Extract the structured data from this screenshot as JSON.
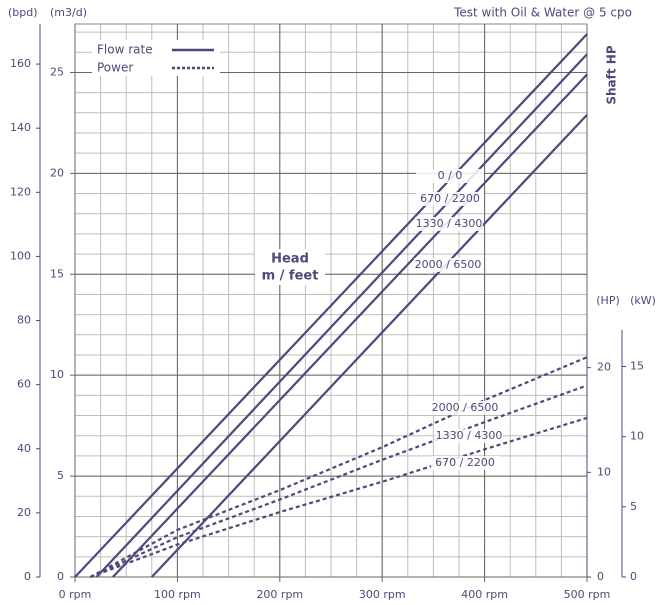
{
  "chart_data": {
    "type": "line",
    "title": "Test with Oil & Water @ 5 cpo",
    "y_label": "(m3/d)",
    "y3_label": "(bpd)",
    "y2_title": "Shaft HP",
    "y2_label": "(HP)",
    "y4_label": "(kW)",
    "annotation": [
      "Head",
      "m / feet"
    ],
    "legend": [
      {
        "name": "Flow rate",
        "style": "solid"
      },
      {
        "name": "Power",
        "style": "dotted"
      }
    ],
    "color": "#4b4a7a",
    "grid": true,
    "xlim": [
      0,
      500
    ],
    "xticks": [
      {
        "value": 0,
        "label": "0 rpm"
      },
      {
        "value": 100,
        "label": "100 rpm"
      },
      {
        "value": 200,
        "label": "200 rpm"
      },
      {
        "value": 300,
        "label": "300 rpm"
      },
      {
        "value": 400,
        "label": "400 rpm"
      },
      {
        "value": 500,
        "label": "500 rpm"
      }
    ],
    "xgrid": [
      0,
      25,
      50,
      75,
      100,
      125,
      150,
      175,
      200,
      225,
      250,
      275,
      300,
      325,
      350,
      375,
      400,
      425,
      450,
      475,
      500
    ],
    "ylim": [
      0,
      27.4
    ],
    "yticks": [
      0,
      5,
      10,
      15,
      20,
      25
    ],
    "ygrid": [
      0,
      1,
      2,
      3,
      4,
      5,
      6,
      7,
      8,
      9,
      10,
      11,
      12,
      13,
      14,
      15,
      16,
      17,
      18,
      19,
      20,
      21,
      22,
      23,
      24,
      25,
      26,
      27
    ],
    "y3lim": [
      0,
      172.5
    ],
    "y3ticks": [
      0,
      20,
      40,
      60,
      80,
      100,
      120,
      140,
      160
    ],
    "y2lim": [
      0,
      23.6
    ],
    "y2ticks": [
      0,
      10,
      20
    ],
    "y4lim": [
      0,
      17.6
    ],
    "y4ticks": [
      0,
      5,
      10,
      15
    ],
    "series": [
      {
        "name": "0 / 0",
        "x": [
          0,
          500
        ],
        "values": [
          0,
          26.9
        ]
      },
      {
        "name": "670 / 2200",
        "x": [
          21,
          500
        ],
        "values": [
          0,
          25.9
        ]
      },
      {
        "name": "1330 / 4300",
        "x": [
          37,
          500
        ],
        "values": [
          0,
          24.9
        ]
      },
      {
        "name": "2000 / 6500",
        "x": [
          75,
          500
        ],
        "values": [
          0,
          22.9
        ]
      },
      {
        "name": "2000 / 6500",
        "axis": "y2",
        "x": [
          15,
          100,
          200,
          300,
          400,
          500
        ],
        "values": [
          0,
          4.5,
          8.3,
          12.4,
          16.9,
          21
        ]
      },
      {
        "name": "1330 / 4300",
        "axis": "y2",
        "x": [
          15,
          100,
          200,
          300,
          400,
          500
        ],
        "values": [
          0,
          3.8,
          7.4,
          11.2,
          14.8,
          18.3
        ]
      },
      {
        "name": "670 / 2200",
        "axis": "y2",
        "x": [
          15,
          100,
          200,
          300,
          400,
          500
        ],
        "values": [
          0,
          3.1,
          6.2,
          9.1,
          12.2,
          15.2
        ]
      }
    ]
  }
}
